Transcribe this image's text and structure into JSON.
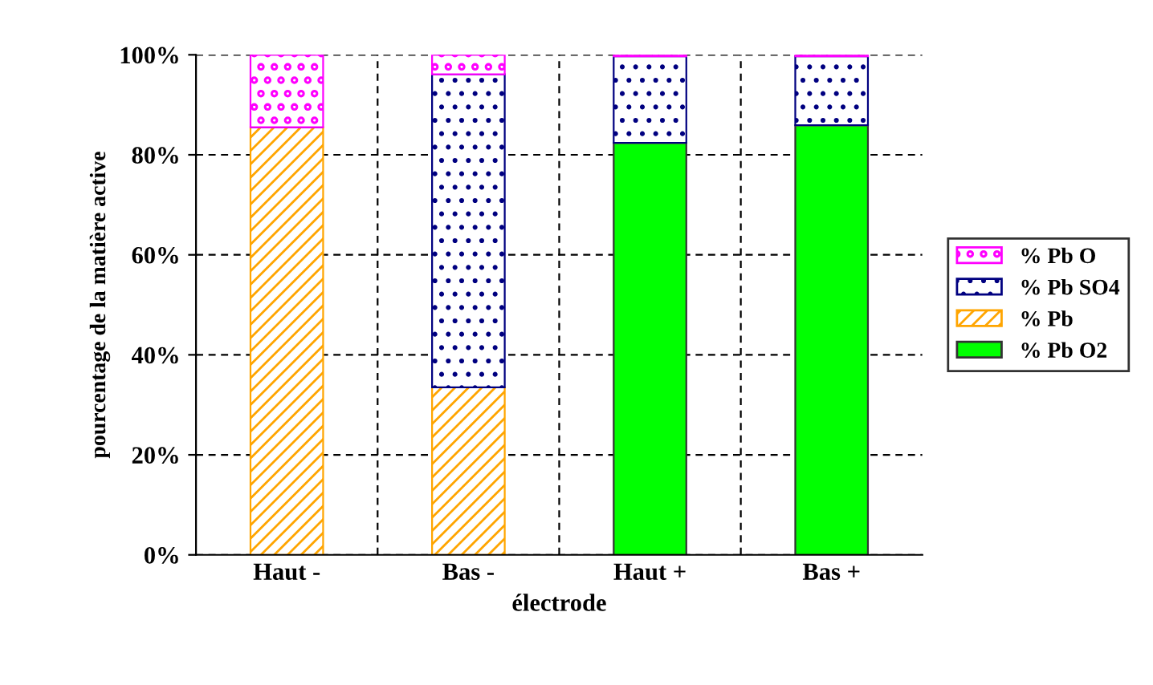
{
  "chart_data": {
    "type": "bar",
    "stacked": true,
    "xlabel": "électrode",
    "ylabel": "pourcentage de la matière active",
    "categories": [
      "Haut -",
      "Bas -",
      "Haut +",
      "Bas +"
    ],
    "series": [
      {
        "name": "% Pb O2",
        "color": "#00ff00",
        "values": [
          0,
          0,
          82.4,
          85.9
        ]
      },
      {
        "name": "% Pb",
        "color": "#ffa500",
        "values": [
          85.5,
          33.5,
          0,
          0
        ]
      },
      {
        "name": "% Pb SO4",
        "color": "#000080",
        "values": [
          0,
          62.6,
          17.3,
          13.8
        ]
      },
      {
        "name": "% Pb O",
        "color": "#ff00ff",
        "values": [
          14.5,
          3.9,
          0.3,
          0.3
        ]
      }
    ],
    "ylim": [
      0,
      100
    ],
    "yticks": [
      {
        "value": 0,
        "label": "0%"
      },
      {
        "value": 20,
        "label": "20%"
      },
      {
        "value": 40,
        "label": "40%"
      },
      {
        "value": 60,
        "label": "60%"
      },
      {
        "value": 80,
        "label": "80%"
      },
      {
        "value": 100,
        "label": "100%"
      }
    ],
    "grid": true,
    "legend": "right"
  }
}
